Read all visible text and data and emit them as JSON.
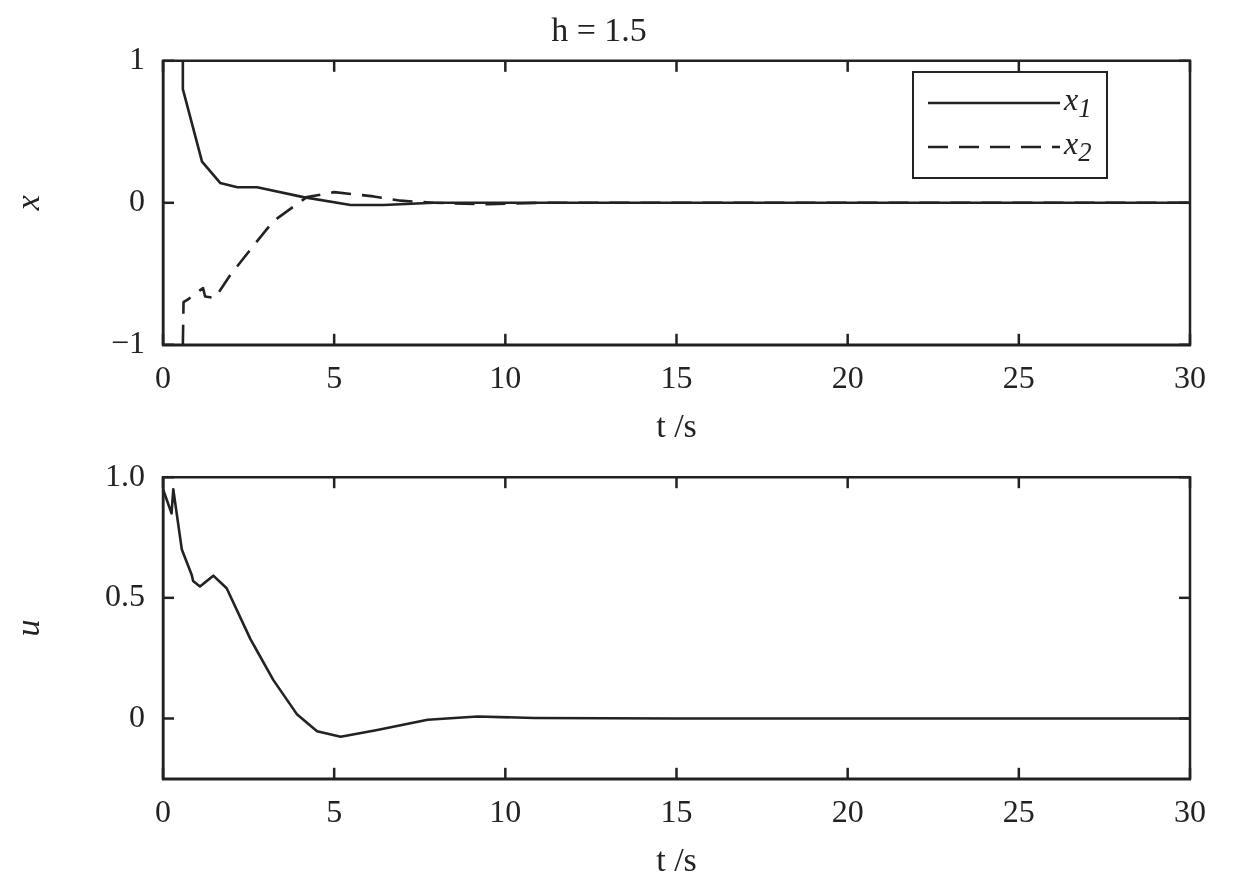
{
  "chart_data": [
    {
      "type": "line",
      "title": "h = 1.5",
      "xlabel": "t /s",
      "ylabel": "x",
      "xlim": [
        0,
        30
      ],
      "xticks": [
        0,
        5,
        10,
        15,
        20,
        25,
        30
      ],
      "ylim": [
        -1,
        1
      ],
      "yticks": [
        {
          "value": -1,
          "label": "−1"
        },
        0,
        1
      ],
      "legend": "top right",
      "series": [
        {
          "name": "x$_{1}$",
          "color": "#222222",
          "line_style": "solid",
          "x": [
            0.58,
            0.58,
            1.14,
            1.67,
            2.17,
            2.75,
            4.1,
            5.48,
            6.45,
            7.9,
            10,
            15,
            20,
            25,
            30
          ],
          "values": [
            1,
            0.8,
            0.29,
            0.14,
            0.11,
            0.11,
            0.04,
            -0.015,
            -0.015,
            0,
            0,
            0,
            0,
            0,
            0
          ]
        },
        {
          "name": "x$_{2}$",
          "color": "#222222",
          "line_style": "dashed",
          "x": [
            0.58,
            0.6,
            0.73,
            1.17,
            1.23,
            1.52,
            1.96,
            2.75,
            3.22,
            4.2,
            5.0,
            6.15,
            6.94,
            7.9,
            9.5,
            11,
            15,
            20,
            25,
            30
          ],
          "values": [
            -1,
            -0.7,
            -0.68,
            -0.6,
            -0.66,
            -0.67,
            -0.51,
            -0.27,
            -0.13,
            0.04,
            0.075,
            0.045,
            0.015,
            0,
            -0.01,
            0,
            0,
            0,
            0,
            0
          ]
        }
      ]
    },
    {
      "type": "line",
      "xlabel": "t /s",
      "ylabel": "u",
      "xlim": [
        0,
        30
      ],
      "xticks": [
        0,
        5,
        10,
        15,
        20,
        25,
        30
      ],
      "ylim": [
        -0.25,
        1
      ],
      "yticks": [
        0,
        0.5,
        {
          "value": 1,
          "label": "1.0"
        }
      ],
      "series": [
        {
          "color": "#222222",
          "line_style": "solid",
          "x": [
            0,
            0.25,
            0.3,
            0.55,
            0.84,
            0.88,
            1.08,
            1.47,
            1.86,
            2.55,
            3.22,
            3.92,
            4.5,
            5.19,
            6.26,
            7.73,
            9.19,
            10.85,
            15,
            20,
            25,
            30
          ],
          "values": [
            0.95,
            0.85,
            0.95,
            0.7,
            0.595,
            0.57,
            0.547,
            0.592,
            0.54,
            0.33,
            0.16,
            0.016,
            -0.053,
            -0.076,
            -0.048,
            -0.005,
            0.008,
            0.002,
            0,
            0,
            0,
            0
          ]
        }
      ]
    }
  ]
}
